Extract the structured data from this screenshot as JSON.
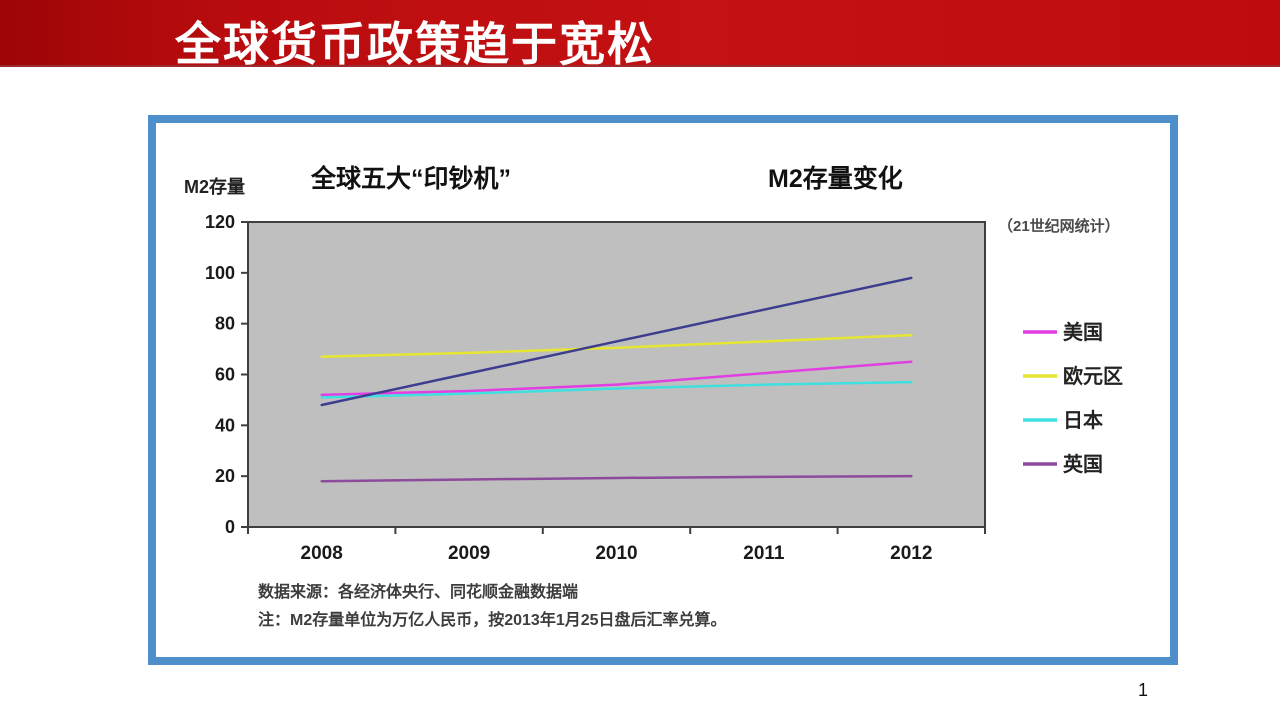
{
  "slide": {
    "title": "全球货币政策趋于宽松",
    "page_number": "1",
    "accent_red": "#c41113",
    "panel_border_blue": "#4e8ecb"
  },
  "chart": {
    "axis_unit_label": "M2存量",
    "title_left": "全球五大“印钞机”",
    "title_right": "M2存量变化",
    "stat_note": "（21世纪网统计）",
    "source_line1": "数据来源：各经济体央行、同花顺金融数据端",
    "source_line2": "注：M2存量单位为万亿人民币，按2013年1月25日盘后汇率兑算。"
  },
  "chart_data": {
    "type": "line",
    "title": "全球五大“印钞机” M2存量变化",
    "ylabel": "M2存量",
    "xlabel": "",
    "categories": [
      "2008",
      "2009",
      "2010",
      "2011",
      "2012"
    ],
    "series": [
      {
        "name": "美国",
        "color": "#e13fe1",
        "in_legend": true,
        "values": [
          52,
          53.5,
          56,
          60.5,
          65
        ]
      },
      {
        "name": "欧元区",
        "color": "#e6e632",
        "in_legend": true,
        "values": [
          67,
          68.5,
          70.5,
          73,
          75.5
        ]
      },
      {
        "name": "日本",
        "color": "#3fe0e0",
        "in_legend": true,
        "values": [
          51,
          52.5,
          54.5,
          56,
          57
        ]
      },
      {
        "name": "英国",
        "color": "#8d4b9b",
        "in_legend": true,
        "values": [
          18,
          18.7,
          19.3,
          19.7,
          20
        ]
      },
      {
        "name": "",
        "color": "#3d3d8f",
        "in_legend": false,
        "values": [
          48,
          60.5,
          73,
          85.5,
          98
        ]
      }
    ],
    "ylim": [
      0,
      120
    ],
    "ytick_step": 20,
    "yticks": [
      0,
      20,
      40,
      60,
      80,
      100,
      120
    ],
    "grid": false,
    "plot_bg": "#bfbfbf",
    "axis_color": "#3f3f3f",
    "legend_position": "right"
  }
}
